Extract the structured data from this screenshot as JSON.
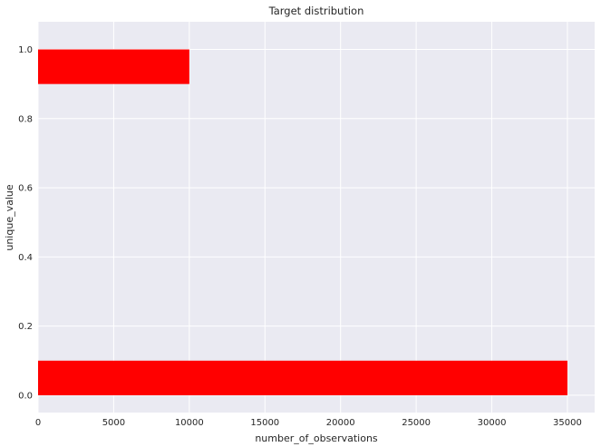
{
  "chart_data": {
    "type": "bar",
    "orientation": "horizontal",
    "title": "Target distribution",
    "xlabel": "number_of_observations",
    "ylabel": "unique_value",
    "xlim": [
      0,
      36800
    ],
    "ylim": [
      -0.05,
      1.08
    ],
    "xticks": [
      0,
      5000,
      10000,
      15000,
      20000,
      25000,
      30000,
      35000
    ],
    "yticks": [
      0.0,
      0.2,
      0.4,
      0.6,
      0.8,
      1.0
    ],
    "xtick_labels": [
      "0",
      "5000",
      "10000",
      "15000",
      "20000",
      "25000",
      "30000",
      "35000"
    ],
    "ytick_labels": [
      "0.0",
      "0.2",
      "0.4",
      "0.6",
      "0.8",
      "1.0"
    ],
    "bars": [
      {
        "y": 0.0,
        "height": 0.1,
        "value": 35000
      },
      {
        "y": 0.9,
        "height": 0.1,
        "value": 10000
      }
    ],
    "bar_color": "#ff0000",
    "background_color": "#eaeaf2",
    "grid_color": "#ffffff",
    "grid": true
  }
}
